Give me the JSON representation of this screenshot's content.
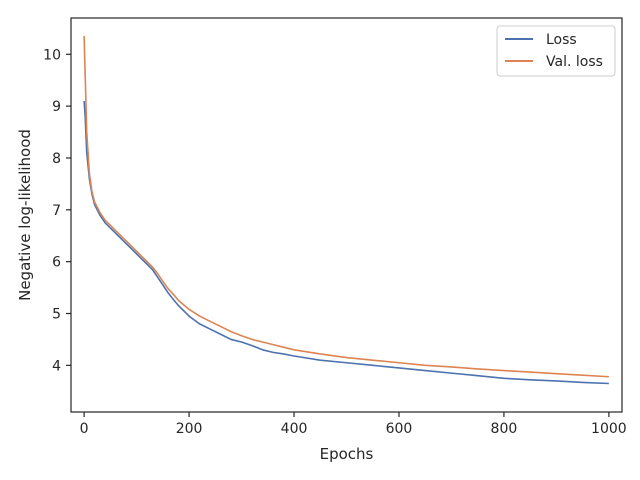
{
  "chart_data": {
    "type": "line",
    "xlabel": "Epochs",
    "ylabel": "Negative log-likelihood",
    "xlim": [
      -25,
      1025
    ],
    "ylim": [
      3.1,
      10.7
    ],
    "xticks": [
      0,
      200,
      400,
      600,
      800,
      1000
    ],
    "yticks": [
      4,
      5,
      6,
      7,
      8,
      9,
      10
    ],
    "grid": false,
    "legend_position": "top-right",
    "series": [
      {
        "name": "Loss",
        "color": "#4c72b0",
        "points": [
          [
            0,
            9.1
          ],
          [
            2,
            8.8
          ],
          [
            5,
            8.1
          ],
          [
            10,
            7.6
          ],
          [
            15,
            7.3
          ],
          [
            20,
            7.1
          ],
          [
            30,
            6.9
          ],
          [
            40,
            6.75
          ],
          [
            60,
            6.55
          ],
          [
            80,
            6.35
          ],
          [
            100,
            6.15
          ],
          [
            120,
            5.95
          ],
          [
            130,
            5.85
          ],
          [
            140,
            5.7
          ],
          [
            150,
            5.55
          ],
          [
            160,
            5.4
          ],
          [
            170,
            5.27
          ],
          [
            180,
            5.15
          ],
          [
            200,
            4.95
          ],
          [
            220,
            4.8
          ],
          [
            240,
            4.7
          ],
          [
            260,
            4.6
          ],
          [
            280,
            4.5
          ],
          [
            300,
            4.45
          ],
          [
            320,
            4.38
          ],
          [
            340,
            4.3
          ],
          [
            360,
            4.25
          ],
          [
            380,
            4.22
          ],
          [
            400,
            4.18
          ],
          [
            450,
            4.1
          ],
          [
            500,
            4.05
          ],
          [
            550,
            4.0
          ],
          [
            600,
            3.95
          ],
          [
            650,
            3.9
          ],
          [
            700,
            3.85
          ],
          [
            750,
            3.8
          ],
          [
            800,
            3.75
          ],
          [
            850,
            3.72
          ],
          [
            900,
            3.7
          ],
          [
            950,
            3.67
          ],
          [
            1000,
            3.65
          ]
        ]
      },
      {
        "name": "Val. loss",
        "color": "#dd8452",
        "points": [
          [
            0,
            10.35
          ],
          [
            2,
            9.6
          ],
          [
            5,
            8.5
          ],
          [
            10,
            7.7
          ],
          [
            15,
            7.35
          ],
          [
            20,
            7.15
          ],
          [
            30,
            6.95
          ],
          [
            40,
            6.8
          ],
          [
            60,
            6.6
          ],
          [
            80,
            6.4
          ],
          [
            100,
            6.2
          ],
          [
            120,
            6.0
          ],
          [
            130,
            5.9
          ],
          [
            140,
            5.77
          ],
          [
            150,
            5.62
          ],
          [
            160,
            5.48
          ],
          [
            170,
            5.37
          ],
          [
            180,
            5.25
          ],
          [
            200,
            5.08
          ],
          [
            220,
            4.95
          ],
          [
            240,
            4.85
          ],
          [
            260,
            4.75
          ],
          [
            280,
            4.65
          ],
          [
            300,
            4.57
          ],
          [
            320,
            4.5
          ],
          [
            340,
            4.45
          ],
          [
            360,
            4.4
          ],
          [
            380,
            4.35
          ],
          [
            400,
            4.3
          ],
          [
            450,
            4.22
          ],
          [
            500,
            4.15
          ],
          [
            550,
            4.1
          ],
          [
            600,
            4.05
          ],
          [
            650,
            4.0
          ],
          [
            700,
            3.97
          ],
          [
            750,
            3.93
          ],
          [
            800,
            3.9
          ],
          [
            850,
            3.87
          ],
          [
            900,
            3.84
          ],
          [
            950,
            3.81
          ],
          [
            1000,
            3.78
          ]
        ]
      }
    ]
  }
}
